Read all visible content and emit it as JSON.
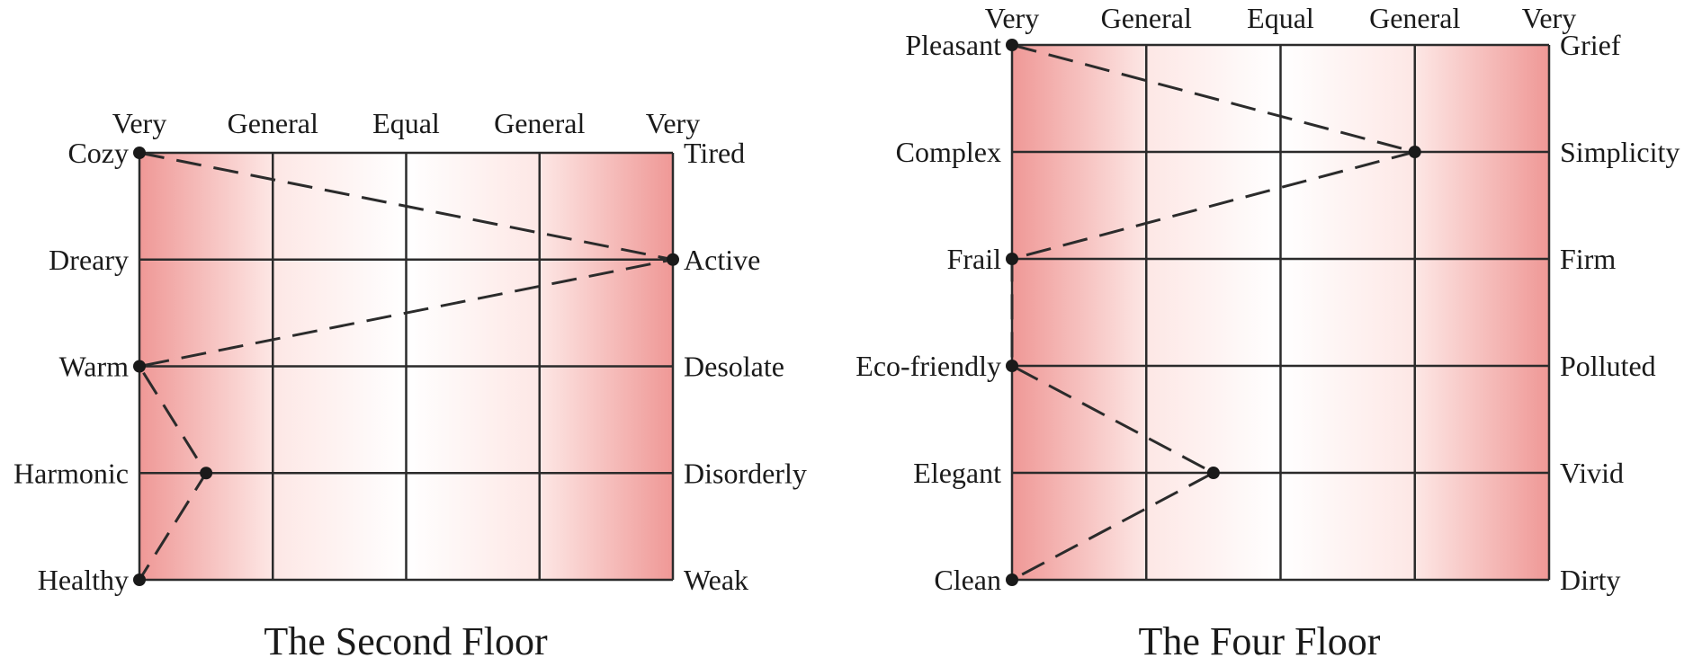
{
  "chart_data": [
    {
      "type": "line",
      "chart_kind": "semantic-differential profile",
      "title": "The Second Floor",
      "scale_labels": [
        "Very",
        "General",
        "Equal",
        "General",
        "Very"
      ],
      "left_adjectives": [
        "Cozy",
        "Dreary",
        "Warm",
        "Harmonic",
        "Healthy"
      ],
      "right_adjectives": [
        "Tired",
        "Active",
        "Desolate",
        "Disorderly",
        "Weak"
      ],
      "values": [
        0,
        4,
        0,
        0.5,
        0
      ],
      "x_range": [
        0,
        4
      ],
      "grid": true,
      "background": "red at both extremes fading to white at the center",
      "colors": {
        "extreme": "#ef9896",
        "center": "#ffffff",
        "lines": "#2b2b2b"
      }
    },
    {
      "type": "line",
      "chart_kind": "semantic-differential profile",
      "title": "The Four Floor",
      "scale_labels": [
        "Very",
        "General",
        "Equal",
        "General",
        "Very"
      ],
      "left_adjectives": [
        "Pleasant",
        "Complex",
        "Frail",
        "Eco-friendly",
        "Elegant",
        "Clean"
      ],
      "right_adjectives": [
        "Grief",
        "Simplicity",
        "Firm",
        "Polluted",
        "Vivid",
        "Dirty"
      ],
      "values": [
        0,
        3,
        0,
        0,
        1.5,
        0
      ],
      "x_range": [
        0,
        4
      ],
      "grid": true,
      "background": "red at both extremes fading to white at the center",
      "colors": {
        "extreme": "#ef9896",
        "center": "#ffffff",
        "lines": "#2b2b2b"
      }
    }
  ]
}
